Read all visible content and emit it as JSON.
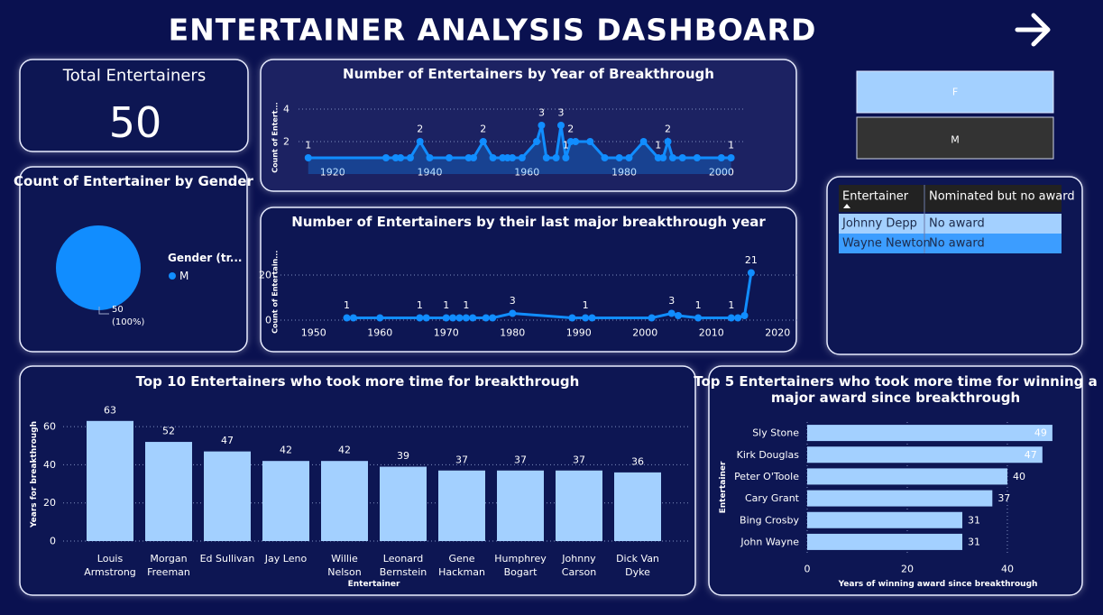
{
  "title": "ENTERTAINER ANALYSIS DASHBOARD",
  "kpi": {
    "label": "Total Entertainers",
    "value": 50
  },
  "slicer": {
    "options": [
      "F",
      "M"
    ]
  },
  "table": {
    "columns": [
      "Entertainer",
      "Nominated but no award"
    ],
    "rows": [
      [
        "Johnny Depp",
        "No award"
      ],
      [
        "Wayne Newton",
        "No award"
      ]
    ]
  },
  "chart_data": [
    {
      "type": "area",
      "title": "Number of Entertainers by Year of Breakthrough",
      "y_label": "Count of Entert...",
      "x": [
        1915,
        1931,
        1933,
        1934,
        1936,
        1938,
        1940,
        1944,
        1948,
        1949,
        1951,
        1953,
        1955,
        1956,
        1957,
        1959,
        1962,
        1963,
        1964,
        1966,
        1967,
        1968,
        1969,
        1970,
        1973,
        1976,
        1979,
        1981,
        1984,
        1987,
        1988,
        1989,
        1990,
        1992,
        1995,
        2000,
        2002
      ],
      "values": [
        1,
        1,
        1,
        1,
        1,
        2,
        1,
        1,
        1,
        1,
        2,
        1,
        1,
        1,
        1,
        1,
        2,
        3,
        1,
        1,
        3,
        1,
        2,
        2,
        2,
        1,
        1,
        1,
        2,
        1,
        1,
        2,
        1,
        1,
        1,
        1,
        1
      ],
      "value_labels": [
        "1",
        null,
        null,
        null,
        null,
        "2",
        null,
        null,
        null,
        null,
        "2",
        null,
        null,
        null,
        null,
        null,
        null,
        "3",
        null,
        null,
        "3",
        "1",
        "2",
        null,
        null,
        null,
        null,
        null,
        null,
        "1",
        null,
        "2",
        null,
        null,
        null,
        null,
        "1"
      ],
      "xlim": [
        1913,
        2003
      ],
      "xticks": [
        1920,
        1940,
        1960,
        1980,
        2000
      ],
      "ylim": [
        0,
        4.5
      ],
      "yticks": [
        2,
        4
      ],
      "color": "#118dff",
      "grid": true
    },
    {
      "type": "line",
      "title": "Number of Entertainers by their last major breakthrough year",
      "y_label": "Count of Entertain...",
      "x": [
        1955,
        1956,
        1960,
        1966,
        1967,
        1970,
        1971,
        1972,
        1973,
        1974,
        1976,
        1977,
        1980,
        1989,
        1991,
        1992,
        2001,
        2004,
        2005,
        2008,
        2013,
        2014,
        2015,
        2016
      ],
      "values": [
        1,
        1,
        1,
        1,
        1,
        1,
        1,
        1,
        1,
        1,
        1,
        1,
        3,
        1,
        1,
        1,
        1,
        3,
        2,
        1,
        1,
        1,
        2,
        21
      ],
      "value_labels": [
        "1",
        null,
        null,
        "1",
        null,
        "1",
        null,
        null,
        "1",
        null,
        null,
        null,
        "3",
        null,
        "1",
        null,
        null,
        "3",
        null,
        "1",
        "1",
        null,
        null,
        "21"
      ],
      "xlim": [
        1945,
        2022
      ],
      "xticks": [
        1950,
        1960,
        1970,
        1980,
        1990,
        2000,
        2010,
        2020
      ],
      "ylim": [
        0,
        25
      ],
      "yticks": [
        0,
        20
      ],
      "color": "#118dff",
      "grid": true
    },
    {
      "type": "bar",
      "title": "Top 10 Entertainers who took more time for breakthrough",
      "x_label": "Entertainer",
      "y_label": "Years for breakthrough",
      "categories": [
        "Louis Armstrong",
        "Morgan Freeman",
        "Ed Sullivan",
        "Jay Leno",
        "Willie Nelson",
        "Leonard Bernstein",
        "Gene Hackman",
        "Humphrey Bogart",
        "Johnny Carson",
        "Dick Van Dyke"
      ],
      "values": [
        63,
        52,
        47,
        42,
        42,
        39,
        37,
        37,
        37,
        36
      ],
      "ylim": [
        0,
        70
      ],
      "yticks": [
        0,
        20,
        40,
        60
      ],
      "color": "#a3d0ff",
      "grid": true
    },
    {
      "type": "barh",
      "title": "Top 5 Entertainers who took more time for winning a major award since breakthrough",
      "x_label": "Years of winning award since breakthrough",
      "y_label": "Entertainer",
      "categories": [
        "Sly Stone",
        "Kirk Douglas",
        "Peter O'Toole",
        "Cary Grant",
        "Bing Crosby",
        "John Wayne"
      ],
      "values": [
        49,
        47,
        40,
        37,
        31,
        31
      ],
      "xlim": [
        0,
        51
      ],
      "xticks": [
        0,
        20,
        40
      ],
      "color": "#a3d0ff",
      "grid": true
    },
    {
      "type": "pie",
      "title": "Count of Entertainer by Gender",
      "legend_title": "Gender (tr...",
      "categories": [
        "M"
      ],
      "values": [
        50
      ],
      "value_labels": [
        "50 (100%)"
      ],
      "colors": [
        "#118dff"
      ]
    }
  ]
}
